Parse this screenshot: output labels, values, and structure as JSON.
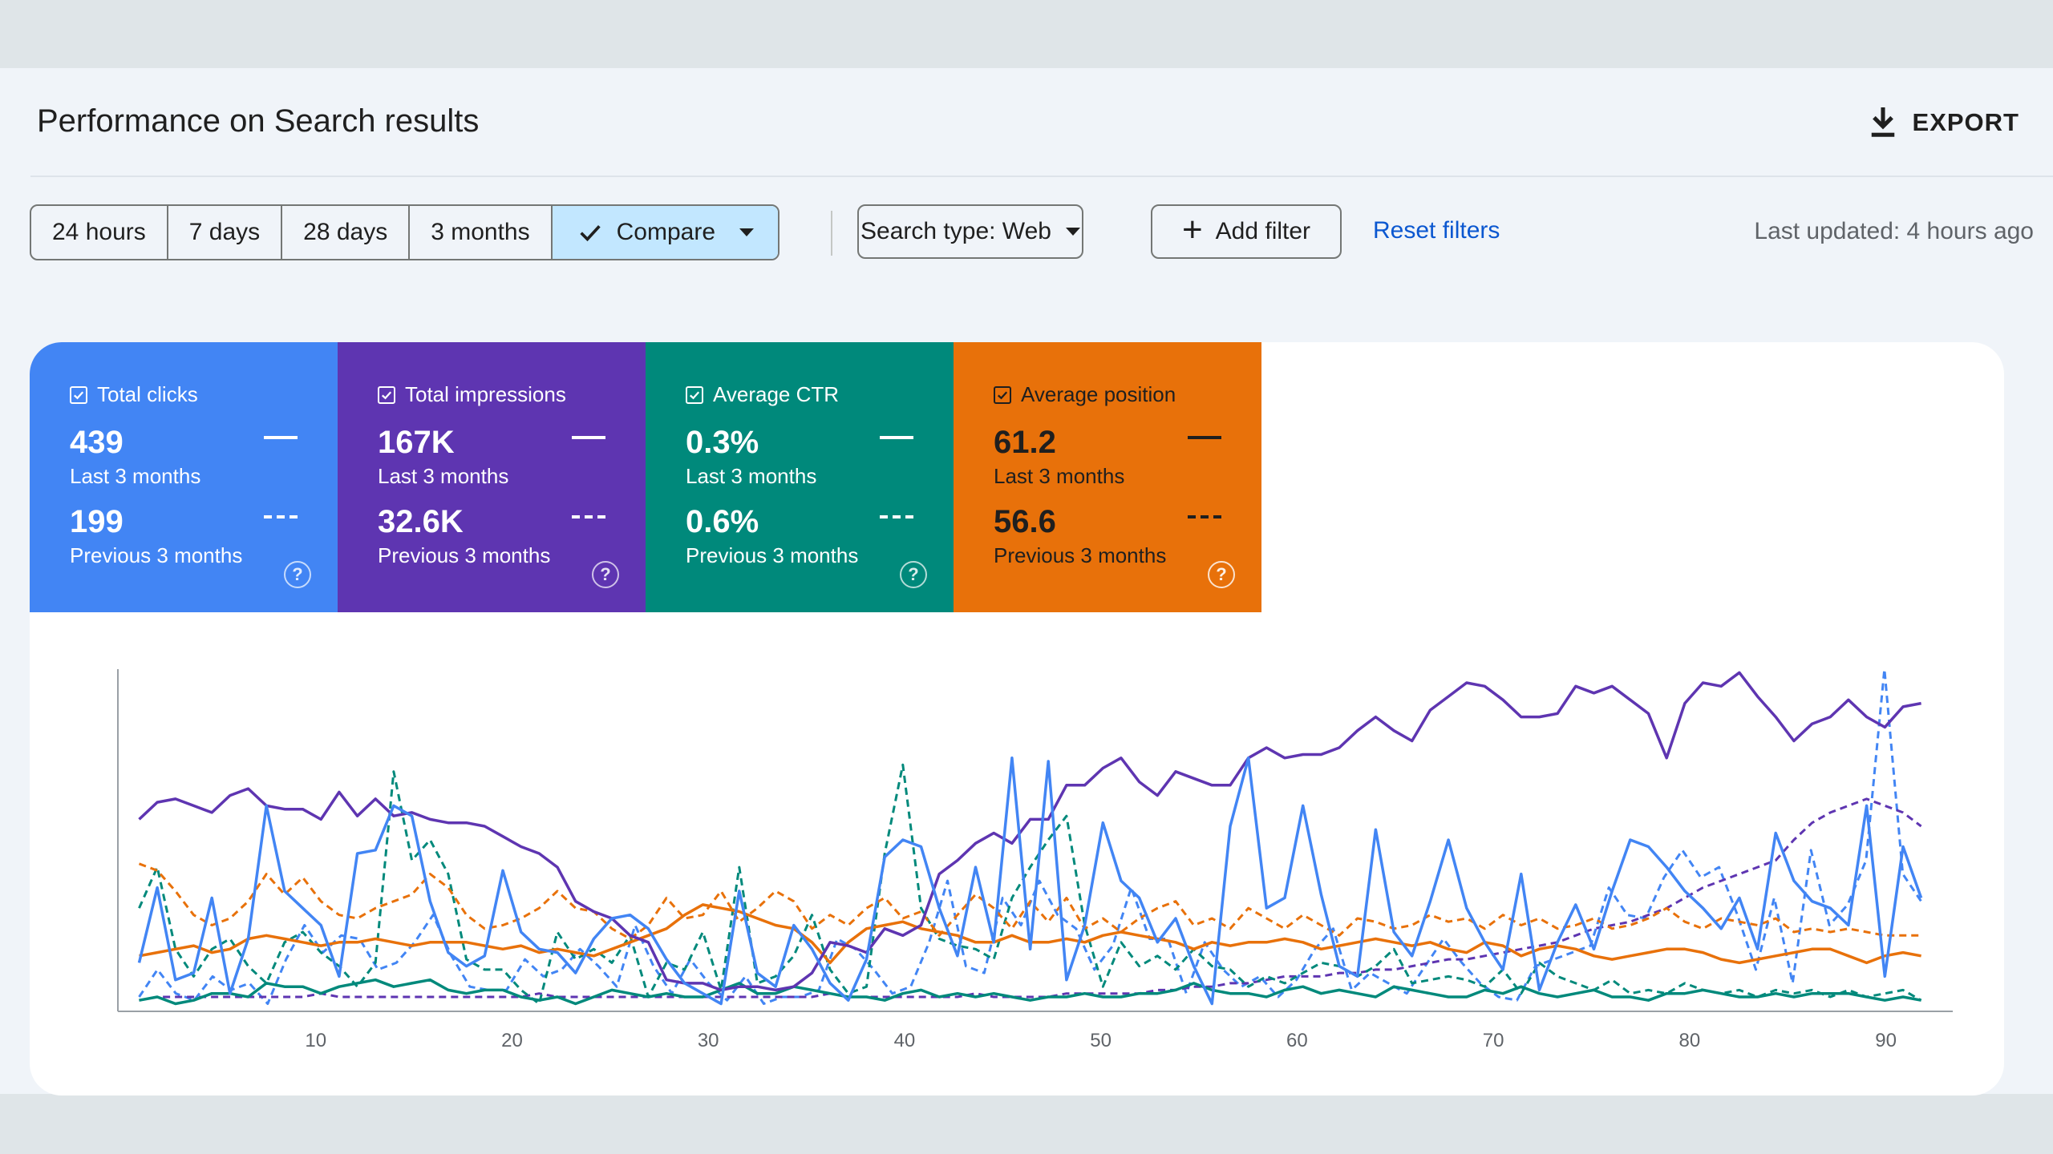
{
  "header": {
    "title": "Performance on Search results",
    "export_label": "EXPORT"
  },
  "toolbar": {
    "ranges": [
      "24 hours",
      "7 days",
      "28 days",
      "3 months"
    ],
    "compare_label": "Compare",
    "search_type_label": "Search type: Web",
    "add_filter_label": "Add filter",
    "reset_label": "Reset filters",
    "last_updated": "Last updated: 4 hours ago"
  },
  "metrics": [
    {
      "label": "Total clicks",
      "value": "439",
      "period": "Last 3 months",
      "prev_value": "199",
      "prev_period": "Previous 3 months",
      "color": "#4285f4",
      "checked": true
    },
    {
      "label": "Total impressions",
      "value": "167K",
      "period": "Last 3 months",
      "prev_value": "32.6K",
      "prev_period": "Previous 3 months",
      "color": "#5e35b1",
      "checked": true
    },
    {
      "label": "Average CTR",
      "value": "0.3%",
      "period": "Last 3 months",
      "prev_value": "0.6%",
      "prev_period": "Previous 3 months",
      "color": "#00897b",
      "checked": true
    },
    {
      "label": "Average position",
      "value": "61.2",
      "period": "Last 3 months",
      "prev_value": "56.6",
      "prev_period": "Previous 3 months",
      "color": "#e8710a",
      "checked": true
    }
  ],
  "chart_data": {
    "type": "line",
    "x_ticks": [
      10,
      20,
      30,
      40,
      50,
      60,
      70,
      80,
      90
    ],
    "xlim": [
      0,
      93
    ],
    "ylim": [
      0,
      1
    ],
    "grid": false,
    "series": [
      {
        "key": "clicks",
        "color": "#4285f4",
        "dashed": false,
        "values": [
          0.14,
          0.36,
          0.09,
          0.11,
          0.33,
          0.05,
          0.21,
          0.6,
          0.35,
          0.3,
          0.25,
          0.1,
          0.46,
          0.47,
          0.6,
          0.57,
          0.32,
          0.17,
          0.13,
          0.16,
          0.41,
          0.23,
          0.18,
          0.17,
          0.11,
          0.21,
          0.27,
          0.28,
          0.24,
          0.15,
          0.08,
          0.05,
          0.02,
          0.35,
          0.11,
          0.07,
          0.25,
          0.18,
          0.08,
          0.03,
          0.15,
          0.45,
          0.5,
          0.48,
          0.3,
          0.16,
          0.42,
          0.2,
          0.74,
          0.18,
          0.73,
          0.09,
          0.25,
          0.55,
          0.38,
          0.33,
          0.2,
          0.27,
          0.13,
          0.02,
          0.54,
          0.74,
          0.3,
          0.33,
          0.6,
          0.34,
          0.13,
          0.1,
          0.53,
          0.23,
          0.16,
          0.32,
          0.5,
          0.3,
          0.2,
          0.12,
          0.4,
          0.06,
          0.2,
          0.31,
          0.18,
          0.35,
          0.5,
          0.48,
          0.42,
          0.35,
          0.3,
          0.24,
          0.33,
          0.18,
          0.52,
          0.38,
          0.32,
          0.3,
          0.25,
          0.6,
          0.1,
          0.48,
          0.33
        ]
      },
      {
        "key": "clicks_prev",
        "color": "#4285f4",
        "dashed": true,
        "values": [
          0.04,
          0.12,
          0.05,
          0.03,
          0.1,
          0.06,
          0.08,
          0.02,
          0.15,
          0.25,
          0.17,
          0.22,
          0.21,
          0.12,
          0.14,
          0.2,
          0.28,
          0.16,
          0.07,
          0.06,
          0.06,
          0.15,
          0.1,
          0.12,
          0.18,
          0.13,
          0.07,
          0.25,
          0.13,
          0.05,
          0.15,
          0.08,
          0.03,
          0.1,
          0.02,
          0.04,
          0.04,
          0.06,
          0.21,
          0.18,
          0.12,
          0.05,
          0.07,
          0.2,
          0.38,
          0.13,
          0.11,
          0.33,
          0.25,
          0.38,
          0.28,
          0.24,
          0.12,
          0.19,
          0.36,
          0.21,
          0.21,
          0.05,
          0.2,
          0.12,
          0.07,
          0.1,
          0.04,
          0.09,
          0.18,
          0.24,
          0.06,
          0.11,
          0.08,
          0.05,
          0.13,
          0.21,
          0.14,
          0.08,
          0.04,
          0.03,
          0.13,
          0.15,
          0.17,
          0.19,
          0.36,
          0.28,
          0.27,
          0.39,
          0.47,
          0.39,
          0.42,
          0.28,
          0.12,
          0.33,
          0.08,
          0.47,
          0.25,
          0.31,
          0.44,
          1.0,
          0.4,
          0.32
        ]
      },
      {
        "key": "impressions",
        "color": "#5e35b1",
        "dashed": false,
        "values": [
          0.56,
          0.61,
          0.62,
          0.6,
          0.58,
          0.63,
          0.65,
          0.6,
          0.59,
          0.59,
          0.56,
          0.64,
          0.57,
          0.62,
          0.57,
          0.58,
          0.56,
          0.55,
          0.55,
          0.54,
          0.51,
          0.48,
          0.46,
          0.42,
          0.32,
          0.29,
          0.27,
          0.22,
          0.2,
          0.09,
          0.08,
          0.08,
          0.06,
          0.07,
          0.07,
          0.06,
          0.07,
          0.11,
          0.2,
          0.19,
          0.17,
          0.24,
          0.22,
          0.25,
          0.4,
          0.44,
          0.49,
          0.52,
          0.49,
          0.56,
          0.56,
          0.66,
          0.66,
          0.71,
          0.74,
          0.67,
          0.63,
          0.7,
          0.68,
          0.66,
          0.66,
          0.74,
          0.77,
          0.74,
          0.75,
          0.75,
          0.77,
          0.82,
          0.86,
          0.82,
          0.79,
          0.88,
          0.92,
          0.96,
          0.95,
          0.91,
          0.86,
          0.86,
          0.87,
          0.95,
          0.93,
          0.95,
          0.91,
          0.87,
          0.74,
          0.9,
          0.96,
          0.95,
          0.99,
          0.92,
          0.86,
          0.79,
          0.84,
          0.86,
          0.91,
          0.86,
          0.83,
          0.89,
          0.9
        ]
      },
      {
        "key": "impressions_prev",
        "color": "#5e35b1",
        "dashed": true,
        "values": [
          0.03,
          0.04,
          0.04,
          0.04,
          0.04,
          0.04,
          0.04,
          0.04,
          0.04,
          0.04,
          0.05,
          0.04,
          0.04,
          0.04,
          0.04,
          0.04,
          0.04,
          0.04,
          0.04,
          0.04,
          0.04,
          0.04,
          0.05,
          0.04,
          0.04,
          0.04,
          0.04,
          0.04,
          0.04,
          0.04,
          0.04,
          0.04,
          0.04,
          0.04,
          0.04,
          0.04,
          0.04,
          0.04,
          0.05,
          0.04,
          0.04,
          0.04,
          0.04,
          0.04,
          0.04,
          0.04,
          0.05,
          0.04,
          0.04,
          0.04,
          0.04,
          0.05,
          0.05,
          0.05,
          0.05,
          0.05,
          0.06,
          0.06,
          0.07,
          0.07,
          0.08,
          0.08,
          0.09,
          0.1,
          0.1,
          0.1,
          0.11,
          0.11,
          0.12,
          0.12,
          0.13,
          0.14,
          0.15,
          0.15,
          0.16,
          0.17,
          0.18,
          0.19,
          0.2,
          0.22,
          0.24,
          0.25,
          0.26,
          0.28,
          0.3,
          0.33,
          0.36,
          0.38,
          0.4,
          0.42,
          0.44,
          0.5,
          0.55,
          0.58,
          0.6,
          0.62,
          0.6,
          0.58,
          0.54
        ]
      },
      {
        "key": "ctr",
        "color": "#00897b",
        "dashed": false,
        "values": [
          0.03,
          0.04,
          0.02,
          0.03,
          0.05,
          0.05,
          0.04,
          0.08,
          0.07,
          0.07,
          0.05,
          0.07,
          0.08,
          0.09,
          0.07,
          0.08,
          0.09,
          0.06,
          0.05,
          0.06,
          0.06,
          0.04,
          0.03,
          0.04,
          0.02,
          0.04,
          0.06,
          0.05,
          0.04,
          0.05,
          0.04,
          0.04,
          0.06,
          0.08,
          0.05,
          0.05,
          0.07,
          0.06,
          0.05,
          0.04,
          0.04,
          0.03,
          0.05,
          0.06,
          0.04,
          0.05,
          0.04,
          0.05,
          0.04,
          0.03,
          0.04,
          0.04,
          0.05,
          0.04,
          0.04,
          0.05,
          0.05,
          0.06,
          0.08,
          0.06,
          0.05,
          0.05,
          0.04,
          0.06,
          0.07,
          0.05,
          0.06,
          0.05,
          0.04,
          0.07,
          0.06,
          0.05,
          0.04,
          0.04,
          0.06,
          0.05,
          0.07,
          0.05,
          0.04,
          0.05,
          0.06,
          0.04,
          0.04,
          0.03,
          0.05,
          0.05,
          0.06,
          0.05,
          0.04,
          0.04,
          0.05,
          0.04,
          0.05,
          0.05,
          0.05,
          0.04,
          0.03,
          0.04,
          0.03
        ]
      },
      {
        "key": "ctr_prev",
        "color": "#00897b",
        "dashed": true,
        "values": [
          0.3,
          0.42,
          0.18,
          0.1,
          0.18,
          0.21,
          0.13,
          0.08,
          0.2,
          0.23,
          0.17,
          0.13,
          0.07,
          0.14,
          0.7,
          0.44,
          0.5,
          0.4,
          0.15,
          0.12,
          0.12,
          0.06,
          0.02,
          0.23,
          0.15,
          0.18,
          0.14,
          0.22,
          0.04,
          0.14,
          0.12,
          0.23,
          0.06,
          0.42,
          0.08,
          0.1,
          0.16,
          0.28,
          0.12,
          0.05,
          0.07,
          0.46,
          0.72,
          0.3,
          0.21,
          0.19,
          0.18,
          0.15,
          0.33,
          0.42,
          0.5,
          0.57,
          0.25,
          0.07,
          0.2,
          0.13,
          0.16,
          0.12,
          0.18,
          0.13,
          0.12,
          0.07,
          0.1,
          0.08,
          0.11,
          0.14,
          0.13,
          0.1,
          0.13,
          0.18,
          0.08,
          0.09,
          0.1,
          0.09,
          0.07,
          0.12,
          0.05,
          0.14,
          0.1,
          0.08,
          0.06,
          0.09,
          0.05,
          0.06,
          0.05,
          0.08,
          0.06,
          0.05,
          0.06,
          0.04,
          0.06,
          0.05,
          0.06,
          0.04,
          0.06,
          0.04,
          0.05,
          0.06,
          0.03
        ]
      },
      {
        "key": "position",
        "color": "#e8710a",
        "dashed": false,
        "values": [
          0.16,
          0.17,
          0.18,
          0.19,
          0.17,
          0.18,
          0.21,
          0.22,
          0.21,
          0.2,
          0.19,
          0.2,
          0.2,
          0.21,
          0.2,
          0.19,
          0.2,
          0.2,
          0.2,
          0.19,
          0.18,
          0.19,
          0.17,
          0.18,
          0.17,
          0.16,
          0.18,
          0.2,
          0.22,
          0.24,
          0.28,
          0.31,
          0.3,
          0.29,
          0.27,
          0.25,
          0.24,
          0.2,
          0.14,
          0.2,
          0.24,
          0.25,
          0.26,
          0.24,
          0.23,
          0.22,
          0.2,
          0.2,
          0.22,
          0.2,
          0.2,
          0.21,
          0.2,
          0.22,
          0.23,
          0.22,
          0.21,
          0.2,
          0.18,
          0.2,
          0.19,
          0.2,
          0.2,
          0.21,
          0.2,
          0.18,
          0.19,
          0.2,
          0.21,
          0.2,
          0.19,
          0.2,
          0.18,
          0.17,
          0.2,
          0.19,
          0.16,
          0.18,
          0.19,
          0.18,
          0.16,
          0.15,
          0.16,
          0.17,
          0.18,
          0.18,
          0.17,
          0.15,
          0.14,
          0.15,
          0.16,
          0.17,
          0.18,
          0.18,
          0.16,
          0.14,
          0.16,
          0.17,
          0.16
        ]
      },
      {
        "key": "position_prev",
        "color": "#e8710a",
        "dashed": true,
        "values": [
          0.43,
          0.41,
          0.35,
          0.28,
          0.25,
          0.27,
          0.32,
          0.4,
          0.34,
          0.39,
          0.32,
          0.28,
          0.27,
          0.3,
          0.32,
          0.34,
          0.4,
          0.36,
          0.28,
          0.24,
          0.25,
          0.27,
          0.3,
          0.35,
          0.3,
          0.29,
          0.24,
          0.21,
          0.25,
          0.33,
          0.27,
          0.28,
          0.35,
          0.26,
          0.3,
          0.35,
          0.32,
          0.24,
          0.28,
          0.25,
          0.3,
          0.33,
          0.27,
          0.29,
          0.22,
          0.28,
          0.34,
          0.3,
          0.24,
          0.32,
          0.26,
          0.33,
          0.24,
          0.27,
          0.23,
          0.27,
          0.3,
          0.32,
          0.25,
          0.27,
          0.24,
          0.3,
          0.27,
          0.24,
          0.28,
          0.25,
          0.22,
          0.27,
          0.26,
          0.24,
          0.25,
          0.28,
          0.26,
          0.27,
          0.24,
          0.28,
          0.25,
          0.27,
          0.24,
          0.25,
          0.27,
          0.24,
          0.25,
          0.27,
          0.3,
          0.26,
          0.24,
          0.27,
          0.26,
          0.25,
          0.27,
          0.23,
          0.24,
          0.23,
          0.24,
          0.23,
          0.22,
          0.22,
          0.22
        ]
      }
    ]
  },
  "icons": {
    "export": "download-icon",
    "check": "check-icon",
    "help": "help-circle-icon",
    "add": "plus-icon",
    "dropdown": "dropdown-caret-icon"
  }
}
